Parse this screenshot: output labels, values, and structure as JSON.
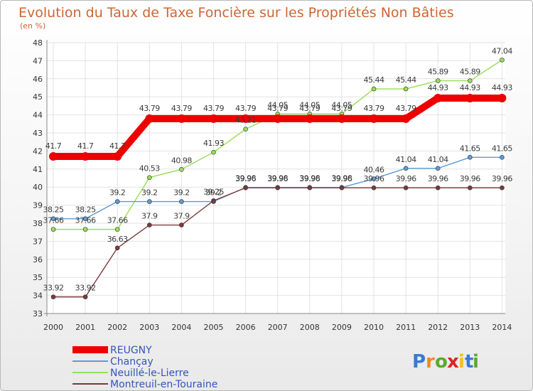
{
  "chart_data": {
    "type": "line",
    "title": "Evolution du Taux de Taxe Foncière sur les Propriétés Non Bâties",
    "ylabel": "(en %)",
    "xlabel": "",
    "ylim": [
      33,
      48
    ],
    "yticks": [
      33,
      34,
      35,
      36,
      37,
      38,
      39,
      40,
      41,
      42,
      43,
      44,
      45,
      46,
      47,
      48
    ],
    "categories": [
      "2000",
      "2001",
      "2002",
      "2003",
      "2004",
      "2005",
      "2006",
      "2007",
      "2008",
      "2009",
      "2010",
      "2011",
      "2012",
      "2013",
      "2014"
    ],
    "grid": true,
    "series": [
      {
        "name": "REUGNY",
        "color": "#ee0000",
        "values": [
          41.7,
          41.7,
          41.7,
          43.79,
          43.79,
          43.79,
          43.79,
          43.79,
          43.79,
          43.79,
          43.79,
          43.79,
          44.93,
          44.93,
          44.93
        ],
        "labels": [
          "41.7",
          "41.7",
          "41.7",
          "43.79",
          "43.79",
          "43.79",
          "43.79",
          "43.79",
          "43.79",
          "43.79",
          "43.79",
          "43.79",
          "44.93",
          "44.93",
          "44.93"
        ]
      },
      {
        "name": "Chançay",
        "color": "#5b9bd5",
        "values": [
          38.25,
          38.25,
          39.2,
          39.2,
          39.2,
          39.2,
          39.98,
          39.98,
          39.98,
          39.98,
          40.46,
          41.04,
          41.04,
          41.65,
          41.65
        ],
        "labels": [
          "38.25",
          "38.25",
          "39.2",
          "39.2",
          "39.2",
          "39.2",
          "39.98",
          "39.98",
          "39.98",
          "39.98",
          "40.46",
          "41.04",
          "41.04",
          "41.65",
          "41.65"
        ]
      },
      {
        "name": "Neuillé-le-Lierre",
        "color": "#99dd55",
        "values": [
          37.66,
          37.66,
          37.66,
          40.53,
          40.98,
          41.93,
          43.21,
          44.05,
          44.05,
          44.05,
          45.44,
          45.44,
          45.89,
          45.89,
          47.04
        ],
        "labels": [
          "37.66",
          "37.66",
          "37.66",
          "40.53",
          "40.98",
          "41.93",
          "43.21",
          "44.05",
          "44.05",
          "44.05",
          "45.44",
          "45.44",
          "45.89",
          "45.89",
          "47.04"
        ]
      },
      {
        "name": "Montreuil-en-Touraine",
        "color": "#7a3a3a",
        "values": [
          33.92,
          33.92,
          36.63,
          37.9,
          37.9,
          39.25,
          39.96,
          39.96,
          39.96,
          39.96,
          39.96,
          39.96,
          39.96,
          39.96,
          39.96
        ],
        "labels": [
          "33.92",
          "33.92",
          "36.63",
          "37.9",
          "37.9",
          "39.25",
          "39.96",
          "39.96",
          "39.96",
          "39.96",
          "39.96",
          "39.96",
          "39.96",
          "39.96",
          "39.96"
        ]
      }
    ]
  },
  "logo": {
    "letters": [
      "P",
      "r",
      "o",
      "x",
      "i",
      "t",
      "i"
    ],
    "colors": [
      "#3a7ad0",
      "#f08a1c",
      "#5aaa2a",
      "#dd2222",
      "#f0c020",
      "#3a7ad0",
      "#5aaa2a"
    ]
  }
}
